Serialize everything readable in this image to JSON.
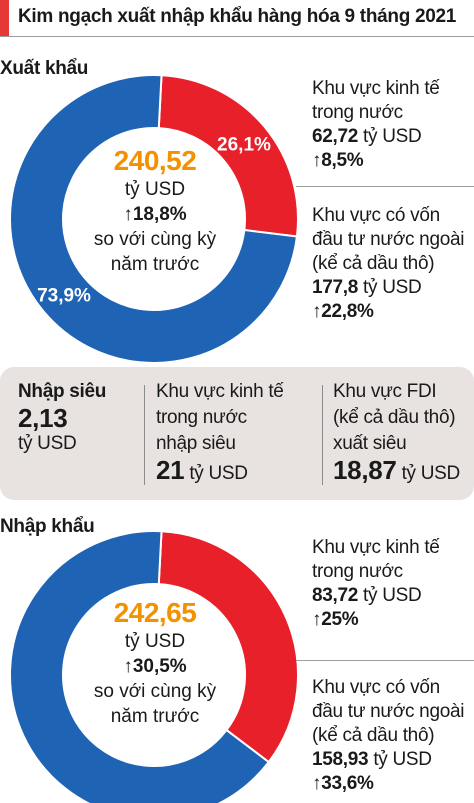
{
  "title": "Kim ngạch xuất nhập khẩu hàng hóa 9 tháng 2021",
  "colors": {
    "red": "#e8202a",
    "blue": "#1e63b4",
    "orange": "#f39200",
    "panel": "#e8e3e1"
  },
  "chart_data": [
    {
      "type": "pie",
      "title": "Xuất khẩu",
      "series": [
        {
          "name": "Khu vực kinh tế trong nước",
          "value": 26.1,
          "label": "26,1%",
          "color": "#e8202a"
        },
        {
          "name": "Khu vực có vốn đầu tư nước ngoài (kể cả dầu thô)",
          "value": 73.9,
          "label": "73,9%",
          "color": "#1e63b4"
        }
      ],
      "center": {
        "value": "240,52",
        "unit": "tỷ USD",
        "change": "↑18,8%",
        "note1": "so với cùng kỳ",
        "note2": "năm trước"
      },
      "legend": [
        {
          "line1": "Khu vực kinh tế",
          "line2": "trong nước",
          "line3": "",
          "value": "62,72",
          "unit": "tỷ USD",
          "change": "↑8,5%"
        },
        {
          "line1": "Khu vực có vốn",
          "line2": "đầu tư nước ngoài",
          "line3": "(kể cả dầu thô)",
          "value": "177,8",
          "unit": "tỷ USD",
          "change": "↑22,8%"
        }
      ]
    },
    {
      "type": "pie",
      "title": "Nhập khẩu",
      "series": [
        {
          "name": "Khu vực kinh tế trong nước",
          "value": 34.5,
          "label": "",
          "color": "#e8202a"
        },
        {
          "name": "Khu vực có vốn đầu tư nước ngoài (kể cả dầu thô)",
          "value": 65.5,
          "label": "",
          "color": "#1e63b4"
        }
      ],
      "center": {
        "value": "242,65",
        "unit": "tỷ USD",
        "change": "↑30,5%",
        "note1": "so với cùng kỳ",
        "note2": "năm trước"
      },
      "legend": [
        {
          "line1": "Khu vực kinh tế",
          "line2": "trong nước",
          "line3": "",
          "value": "83,72",
          "unit": "tỷ USD",
          "change": "↑25%"
        },
        {
          "line1": "Khu vực có vốn",
          "line2": "đầu tư nước ngoài",
          "line3": "(kể cả dầu thô)",
          "value": "158,93",
          "unit": "tỷ USD",
          "change": "↑33,6%"
        }
      ]
    }
  ],
  "balance": {
    "title": "Nhập siêu",
    "value": "2,13",
    "unit": "tỷ USD",
    "domestic": {
      "line1": "Khu vực kinh tế",
      "line2": "trong nước",
      "line3": "nhập siêu",
      "value": "21",
      "unit": "tỷ USD"
    },
    "fdi": {
      "line1": "Khu vực FDI",
      "line2": "(kể cả dầu thô)",
      "line3": "xuất siêu",
      "value": "18,87",
      "unit": "tỷ USD"
    }
  }
}
